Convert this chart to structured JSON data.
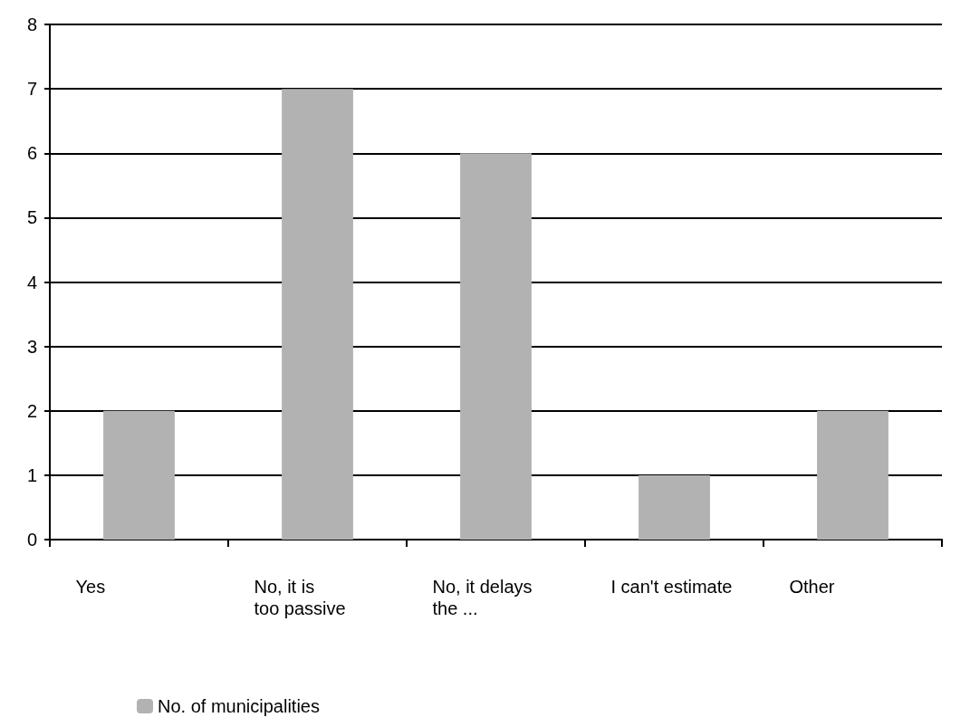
{
  "chart_data": {
    "type": "bar",
    "categories": [
      "Yes",
      "No, it is\ntoo passive",
      "No, it delays\nthe ...",
      "I can't estimate",
      "Other"
    ],
    "series": [
      {
        "name": "No. of municipalities",
        "color": "#b2b2b2",
        "values": [
          2,
          7,
          6,
          1,
          2
        ]
      }
    ],
    "ylim": [
      0,
      8
    ],
    "yticks": [
      0,
      1,
      2,
      3,
      4,
      5,
      6,
      7,
      8
    ],
    "grid": "y",
    "legend": "bottom left"
  }
}
